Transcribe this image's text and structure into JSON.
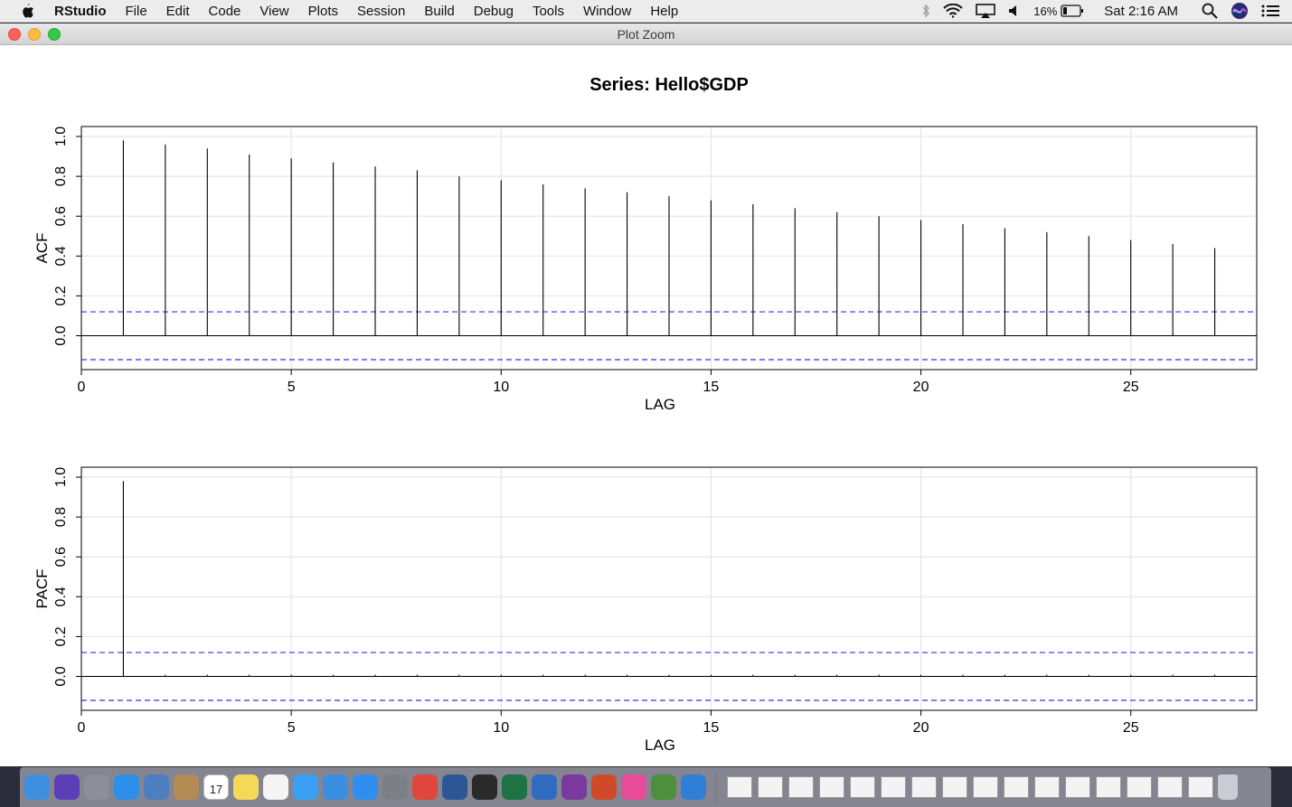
{
  "menubar": {
    "app_name": "RStudio",
    "items": [
      "File",
      "Edit",
      "Code",
      "View",
      "Plots",
      "Session",
      "Build",
      "Debug",
      "Tools",
      "Window",
      "Help"
    ],
    "battery": "16%",
    "clock": "Sat 2:16 AM"
  },
  "window": {
    "title": "Plot Zoom"
  },
  "colors": {
    "ci_line": "#3333ee",
    "grid": "#e6e6e6",
    "close": "#fc605b",
    "minimize": "#fdbc40",
    "zoom": "#34c84a"
  },
  "chart_data": [
    {
      "type": "bar",
      "title": "Series:  Hello$GDP",
      "xlabel": "LAG",
      "ylabel": "ACF",
      "xlim": [
        0,
        28
      ],
      "ylim": [
        -0.17,
        1.05
      ],
      "x_ticks": [
        0,
        5,
        10,
        15,
        20,
        25
      ],
      "x_tick_labels": [
        "0",
        "5",
        "10",
        "15",
        "20",
        "25"
      ],
      "y_ticks": [
        0.0,
        0.2,
        0.4,
        0.6,
        0.8,
        1.0
      ],
      "y_tick_labels": [
        "0.0",
        "0.2",
        "0.4",
        "0.6",
        "0.8",
        "1.0"
      ],
      "lags": [
        1,
        2,
        3,
        4,
        5,
        6,
        7,
        8,
        9,
        10,
        11,
        12,
        13,
        14,
        15,
        16,
        17,
        18,
        19,
        20,
        21,
        22,
        23,
        24,
        25,
        26,
        27
      ],
      "values": [
        0.98,
        0.96,
        0.94,
        0.91,
        0.89,
        0.87,
        0.85,
        0.83,
        0.8,
        0.78,
        0.76,
        0.74,
        0.72,
        0.7,
        0.68,
        0.66,
        0.64,
        0.62,
        0.6,
        0.58,
        0.56,
        0.54,
        0.52,
        0.5,
        0.48,
        0.46,
        0.44
      ],
      "ci": 0.12,
      "grid": true
    },
    {
      "type": "bar",
      "title": "",
      "xlabel": "LAG",
      "ylabel": "PACF",
      "xlim": [
        0,
        28
      ],
      "ylim": [
        -0.17,
        1.05
      ],
      "x_ticks": [
        0,
        5,
        10,
        15,
        20,
        25
      ],
      "x_tick_labels": [
        "0",
        "5",
        "10",
        "15",
        "20",
        "25"
      ],
      "y_ticks": [
        0.0,
        0.2,
        0.4,
        0.6,
        0.8,
        1.0
      ],
      "y_tick_labels": [
        "0.0",
        "0.2",
        "0.4",
        "0.6",
        "0.8",
        "1.0"
      ],
      "lags": [
        1,
        2,
        3,
        4,
        5,
        6,
        7,
        8,
        9,
        10,
        11,
        12,
        13,
        14,
        15,
        16,
        17,
        18,
        19,
        20,
        21,
        22,
        23,
        24,
        25,
        26,
        27
      ],
      "values": [
        0.98,
        0,
        0,
        0,
        0,
        0,
        0,
        0,
        0,
        0,
        0,
        0,
        0,
        0,
        0,
        0,
        0,
        0,
        0,
        0,
        0,
        0,
        0,
        0,
        0,
        0,
        0
      ],
      "ci": 0.12,
      "grid": true
    }
  ],
  "dock": {
    "apps": [
      "finder-icon",
      "siri-icon",
      "launchpad-icon",
      "safari-icon",
      "preview-icon",
      "contacts-icon",
      "calendar-icon",
      "notes-icon",
      "reminders-icon",
      "messages-icon",
      "keynote-icon",
      "app-store-icon",
      "system-preferences-icon",
      "chrome-icon",
      "word-icon",
      "terminal-icon",
      "excel-icon",
      "r-icon",
      "onenote-icon",
      "powerpoint-icon",
      "itunes-icon",
      "camino-icon",
      "xcode-icon"
    ],
    "calendar_day": "17",
    "docs": [
      "doc-1",
      "doc-2",
      "doc-3",
      "doc-4",
      "doc-5",
      "doc-6",
      "doc-7",
      "doc-8",
      "doc-9",
      "doc-10",
      "doc-11",
      "doc-12",
      "doc-13",
      "doc-14",
      "doc-15",
      "doc-16"
    ],
    "trash_label": "trash-icon"
  }
}
